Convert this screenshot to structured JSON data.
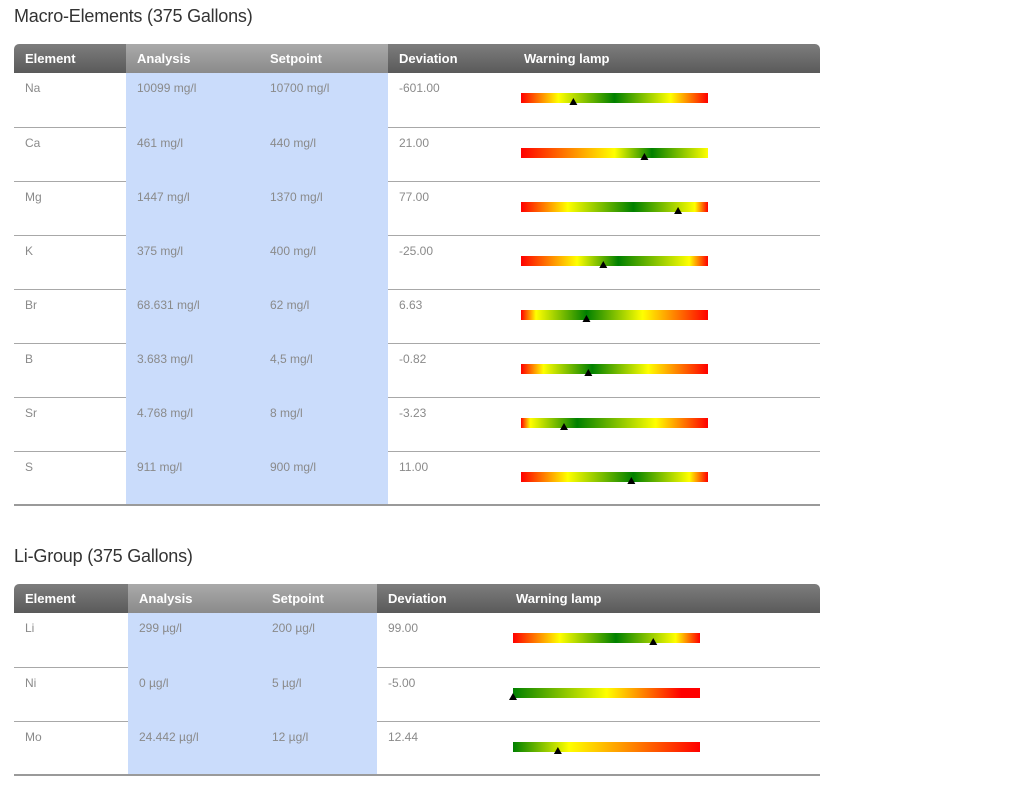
{
  "sections": [
    {
      "title": "Macro-Elements (375 Gallons)",
      "headers": [
        "Element",
        "Analysis",
        "Setpoint",
        "Deviation",
        "Warning lamp"
      ],
      "rows": [
        {
          "element": "Na",
          "analysis": "10099 mg/l",
          "setpoint": "10700 mg/l",
          "deviation": "-601.00",
          "lamp": {
            "colors": [
              "#ff0000",
              "#ffff00",
              "#008000",
              "#ffff00",
              "#ff0000"
            ],
            "stops": [
              0,
              0.2,
              0.5,
              0.8,
              1
            ],
            "marker": 0.28
          }
        },
        {
          "element": "Ca",
          "analysis": "461 mg/l",
          "setpoint": "440 mg/l",
          "deviation": "21.00",
          "lamp": {
            "colors": [
              "#ff0000",
              "#ffff00",
              "#008000",
              "#ffff00"
            ],
            "stops": [
              0,
              0.5,
              0.7,
              1
            ],
            "marker": 0.66
          }
        },
        {
          "element": "Mg",
          "analysis": "1447 mg/l",
          "setpoint": "1370 mg/l",
          "deviation": "77.00",
          "lamp": {
            "colors": [
              "#ff0000",
              "#ffff00",
              "#008000",
              "#ffff00",
              "#ff0000"
            ],
            "stops": [
              0,
              0.25,
              0.6,
              0.93,
              1
            ],
            "marker": 0.84
          }
        },
        {
          "element": "K",
          "analysis": "375 mg/l",
          "setpoint": "400 mg/l",
          "deviation": "-25.00",
          "lamp": {
            "colors": [
              "#ff0000",
              "#ffff00",
              "#008000",
              "#ffff00",
              "#ff0000"
            ],
            "stops": [
              0,
              0.3,
              0.52,
              0.9,
              1
            ],
            "marker": 0.44
          }
        },
        {
          "element": "Br",
          "analysis": "68.631 mg/l",
          "setpoint": "62 mg/l",
          "deviation": "6.63",
          "lamp": {
            "colors": [
              "#ff0000",
              "#ffff00",
              "#008000",
              "#ffff00",
              "#ff0000"
            ],
            "stops": [
              0,
              0.08,
              0.35,
              0.65,
              1
            ],
            "marker": 0.35
          }
        },
        {
          "element": "B",
          "analysis": "3.683 mg/l",
          "setpoint": "4,5 mg/l",
          "deviation": "-0.82",
          "lamp": {
            "colors": [
              "#ff0000",
              "#ffff00",
              "#008000",
              "#ffff00",
              "#ff0000"
            ],
            "stops": [
              0,
              0.12,
              0.38,
              0.68,
              1
            ],
            "marker": 0.36
          }
        },
        {
          "element": "Sr",
          "analysis": "4.768 mg/l",
          "setpoint": "8 mg/l",
          "deviation": "-3.23",
          "lamp": {
            "colors": [
              "#ff0000",
              "#ffff00",
              "#008000",
              "#ffff00",
              "#ff0000"
            ],
            "stops": [
              0,
              0.05,
              0.3,
              0.72,
              1
            ],
            "marker": 0.23
          }
        },
        {
          "element": "S",
          "analysis": "911 mg/l",
          "setpoint": "900 mg/l",
          "deviation": "11.00",
          "lamp": {
            "colors": [
              "#ff0000",
              "#ffff00",
              "#008000",
              "#ffff00",
              "#ff0000"
            ],
            "stops": [
              0,
              0.25,
              0.6,
              0.9,
              1
            ],
            "marker": 0.59
          }
        }
      ]
    },
    {
      "title": "Li-Group (375 Gallons)",
      "headers": [
        "Element",
        "Analysis",
        "Setpoint",
        "Deviation",
        "Warning lamp"
      ],
      "rows": [
        {
          "element": "Li",
          "analysis": "299 µg/l",
          "setpoint": "200 µg/l",
          "deviation": "99.00",
          "lamp": {
            "colors": [
              "#ff0000",
              "#ffff00",
              "#008000",
              "#ffff00",
              "#ff0000"
            ],
            "stops": [
              0,
              0.25,
              0.55,
              0.87,
              1
            ],
            "marker": 0.75
          }
        },
        {
          "element": "Ni",
          "analysis": "0 µg/l",
          "setpoint": "5 µg/l",
          "deviation": "-5.00",
          "lamp": {
            "colors": [
              "#008000",
              "#ffff00",
              "#ff0000"
            ],
            "stops": [
              0,
              0.5,
              0.9
            ],
            "marker": 0.0
          }
        },
        {
          "element": "Mo",
          "analysis": "24.442 µg/l",
          "setpoint": "12 µg/l",
          "deviation": "12.44",
          "lamp": {
            "colors": [
              "#008000",
              "#ffff00",
              "#ff0000"
            ],
            "stops": [
              0,
              0.3,
              1
            ],
            "marker": 0.24
          }
        }
      ]
    }
  ]
}
